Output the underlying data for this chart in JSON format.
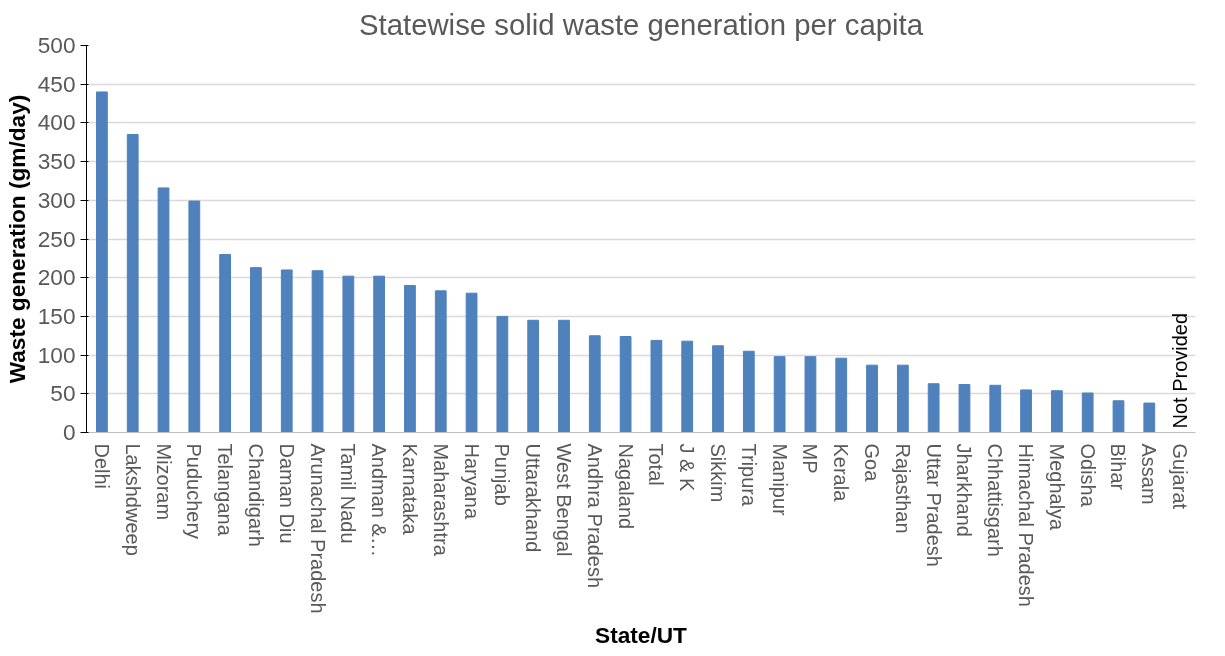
{
  "chart_data": {
    "type": "bar",
    "title": "Statewise solid waste generation per capita",
    "xlabel": "State/UT",
    "ylabel": "Waste generation (gm/day)",
    "categories": [
      "Delhi",
      "Lakshdweep",
      "Mizoram",
      "Puduchery",
      "Telangana",
      "Chandigarh",
      "Daman Diu",
      "Arunachal Pradesh",
      "Tamil Nadu",
      "Andman &…",
      "Karnataka",
      "Maharashtra",
      "Haryana",
      "Punjab",
      "Uttarakhand",
      "West Bengal",
      "Andhra Pradesh",
      "Nagaland",
      "Total",
      "J & K",
      "Sikkim",
      "Tripura",
      "Manipur",
      "MP",
      "Kerala",
      "Goa",
      "Rajasthan",
      "Uttar Pradesh",
      "Jharkhand",
      "Chhattisgarh",
      "Himachal Pradesh",
      "Meghalya",
      "Odisha",
      "Bihar",
      "Assam",
      "Gujarat"
    ],
    "values": [
      440,
      385,
      316,
      299,
      230,
      213,
      210,
      209,
      202,
      202,
      190,
      183,
      180,
      150,
      145,
      145,
      125,
      124,
      119,
      118,
      112,
      105,
      98,
      98,
      96,
      87,
      87,
      63,
      62,
      61,
      55,
      54,
      51,
      41,
      38,
      null
    ],
    "color": "#4f81bd",
    "ylim": [
      0,
      500
    ],
    "yticks": [
      0,
      50,
      100,
      150,
      200,
      250,
      300,
      350,
      400,
      450,
      500
    ],
    "grid": "y",
    "annotations": [
      "Not Provided"
    ]
  }
}
